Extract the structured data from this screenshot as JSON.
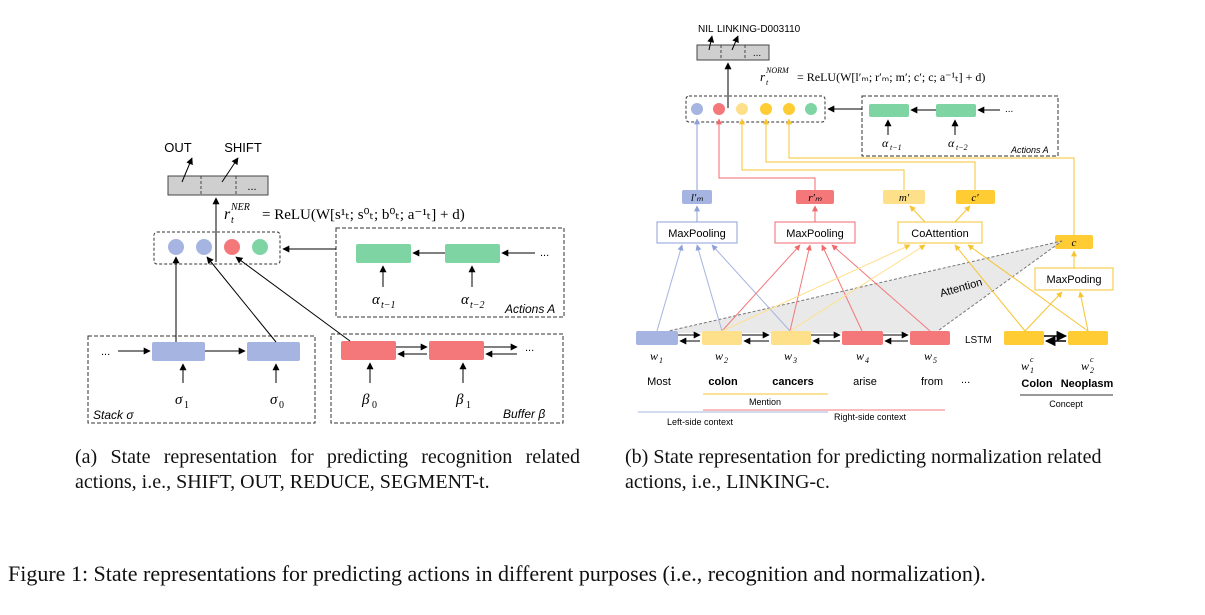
{
  "panel_a": {
    "outputs": [
      "OUT",
      "SHIFT"
    ],
    "output_more": "...",
    "formula_lhs": "r",
    "formula_sup": "NER",
    "formula_sub": "t",
    "formula_rhs": "= ReLU(W[s¹ₜ; s⁰ₜ; b⁰ₜ; a⁻¹ₜ] + d)",
    "actions_ellipsis": "...",
    "action_labels": [
      "α_{t−1}",
      "α_{t−2}"
    ],
    "action_sub": [
      "t−1",
      "t−2"
    ],
    "actions_box_label": "Actions A",
    "stack_ellipsis": "...",
    "stack_labels": [
      "σ",
      "σ"
    ],
    "stack_subs": [
      "1",
      "0"
    ],
    "stack_box_label": "Stack σ",
    "buffer_ellipsis": "...",
    "buffer_labels": [
      "β",
      "β"
    ],
    "buffer_subs": [
      "0",
      "1"
    ],
    "buffer_box_label": "Buffer β"
  },
  "panel_b": {
    "outputs": [
      "NIL",
      "LINKING-D003110"
    ],
    "output_more": "...",
    "formula_lhs": "r",
    "formula_sup": "NORM",
    "formula_sub": "t",
    "formula_rhs": "= ReLU(W[l′ₘ; r′ₘ; m′; c′; c; a⁻¹ₜ] + d)",
    "actions_ellipsis": "...",
    "action_sub": [
      "t−1",
      "t−2"
    ],
    "actions_box_label": "Actions A",
    "feature_labels": [
      "l′ₘ",
      "r′ₘ",
      "m′",
      "c′",
      "c"
    ],
    "maxpooling": "MaxPooling",
    "coattention": "CoAttention",
    "maxpoding": "MaxPoding",
    "attention": "Attention",
    "lstm": "LSTM",
    "word_labels": [
      "w",
      "w",
      "w",
      "w",
      "w"
    ],
    "word_subs": [
      "1",
      "2",
      "3",
      "4",
      "5"
    ],
    "words": [
      "Most",
      "colon",
      "cancers",
      "arise",
      "from"
    ],
    "words_more": "...",
    "concept_subs": [
      "1",
      "2"
    ],
    "concept_words": [
      "Colon",
      "Neoplasm"
    ],
    "mention_label": "Mention",
    "left_context_label": "Left-side context",
    "right_context_label": "Right-side context",
    "concept_label": "Concept"
  },
  "captions": {
    "a": "(a) State representation for predicting recognition related actions, i.e., SHIFT, OUT, REDUCE, SEGMENT-t.",
    "b": "(b) State representation for predicting normalization related actions, i.e., LINKING-c.",
    "main": "Figure 1: State representations for predicting actions in different purposes (i.e., recognition and normalization)."
  },
  "colors": {
    "blue": "#a5b4e0",
    "red": "#f4787a",
    "green": "#7fd4a3",
    "yellow_light": "#ffe08a",
    "yellow": "#ffcc33",
    "gray": "#cccccc"
  }
}
